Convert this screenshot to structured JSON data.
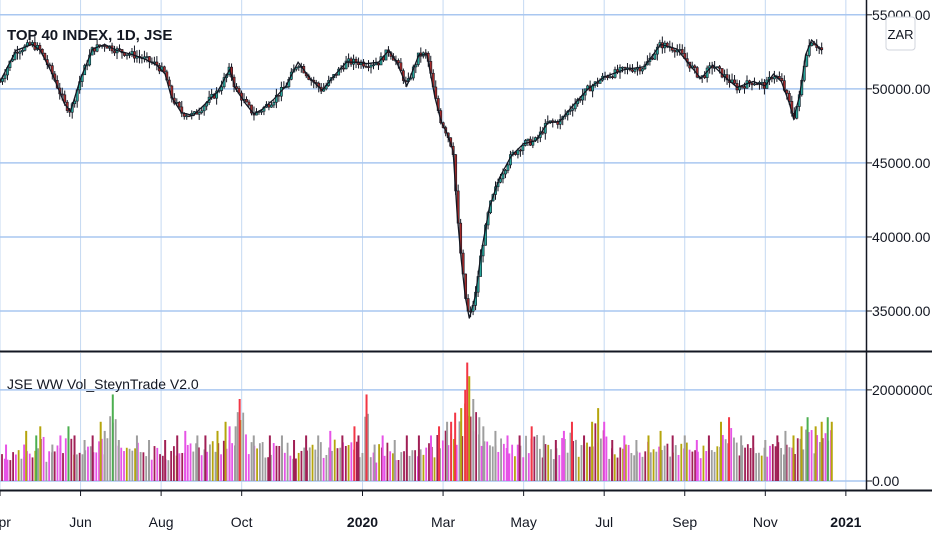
{
  "chart_data": [
    {
      "type": "candlestick",
      "title": "TOP 40 INDEX, 1D, JSE",
      "currency_label": "ZAR",
      "y_ticks": [
        "55000.00",
        "50000.00",
        "45000.00",
        "40000.00",
        "35000.00"
      ],
      "y_tick_values": [
        55000,
        50000,
        45000,
        40000,
        35000
      ],
      "ylim": [
        32300,
        56000
      ],
      "x_ticks": [
        "Apr",
        "Jun",
        "Aug",
        "Oct",
        "2020",
        "Mar",
        "May",
        "Jul",
        "Sep",
        "Nov",
        "2021"
      ],
      "x_tick_positions": [
        0,
        2,
        4,
        6,
        9,
        11,
        13,
        15,
        17,
        19,
        21
      ],
      "xlim": [
        0,
        21.5
      ],
      "grid": true,
      "series": [
        {
          "values": [
            [
              0.0,
              50500
            ],
            [
              0.4,
              52600
            ],
            [
              0.8,
              53000
            ],
            [
              1.0,
              52600
            ],
            [
              1.3,
              51000
            ],
            [
              1.6,
              49000
            ],
            [
              1.75,
              48500
            ],
            [
              2.0,
              50700
            ],
            [
              2.3,
              52700
            ],
            [
              2.6,
              53000
            ],
            [
              2.9,
              52600
            ],
            [
              3.3,
              52300
            ],
            [
              3.6,
              52000
            ],
            [
              3.9,
              51600
            ],
            [
              4.1,
              51000
            ],
            [
              4.25,
              49500
            ],
            [
              4.5,
              48400
            ],
            [
              4.8,
              48200
            ],
            [
              5.1,
              49000
            ],
            [
              5.4,
              49800
            ],
            [
              5.7,
              51300
            ],
            [
              5.85,
              50000
            ],
            [
              6.1,
              49000
            ],
            [
              6.3,
              48300
            ],
            [
              6.5,
              48600
            ],
            [
              6.8,
              49300
            ],
            [
              7.1,
              50200
            ],
            [
              7.4,
              51800
            ],
            [
              7.7,
              50700
            ],
            [
              8.0,
              49900
            ],
            [
              8.3,
              50900
            ],
            [
              8.6,
              51800
            ],
            [
              8.9,
              51800
            ],
            [
              9.1,
              51700
            ],
            [
              9.4,
              51800
            ],
            [
              9.65,
              52600
            ],
            [
              9.85,
              51800
            ],
            [
              10.1,
              50200
            ],
            [
              10.4,
              52300
            ],
            [
              10.6,
              52300
            ],
            [
              10.8,
              49400
            ],
            [
              10.95,
              47800
            ],
            [
              11.1,
              47000
            ],
            [
              11.25,
              45800
            ],
            [
              11.35,
              41500
            ],
            [
              11.45,
              38500
            ],
            [
              11.55,
              36000
            ],
            [
              11.65,
              34500
            ],
            [
              11.8,
              36000
            ],
            [
              11.95,
              39000
            ],
            [
              12.15,
              42000
            ],
            [
              12.4,
              44000
            ],
            [
              12.7,
              45500
            ],
            [
              13.0,
              46300
            ],
            [
              13.3,
              46500
            ],
            [
              13.6,
              47700
            ],
            [
              13.9,
              47800
            ],
            [
              14.2,
              48800
            ],
            [
              14.6,
              50000
            ],
            [
              15.0,
              50800
            ],
            [
              15.5,
              51300
            ],
            [
              16.0,
              51500
            ],
            [
              16.4,
              53000
            ],
            [
              16.8,
              52700
            ],
            [
              17.1,
              51700
            ],
            [
              17.4,
              50700
            ],
            [
              17.7,
              51600
            ],
            [
              18.0,
              50800
            ],
            [
              18.3,
              50100
            ],
            [
              18.7,
              50500
            ],
            [
              19.0,
              50200
            ],
            [
              19.2,
              51000
            ],
            [
              19.4,
              50500
            ],
            [
              19.6,
              49000
            ],
            [
              19.7,
              48000
            ],
            [
              19.85,
              49500
            ],
            [
              20.0,
              52300
            ],
            [
              20.15,
              53300
            ],
            [
              20.4,
              52600
            ]
          ]
        }
      ]
    },
    {
      "type": "bar",
      "title": "JSE WW Vol_SteynTrade V2.0",
      "y_ticks": [
        "20000000.00",
        "0.00"
      ],
      "y_tick_values": [
        20000000,
        0
      ],
      "ylim": [
        0,
        27000000
      ],
      "grid": true,
      "colors": {
        "red": "#f23645",
        "green": "#4caf50",
        "olive": "#b5a50c",
        "crimson": "#a01f55",
        "magenta": "#e653e6",
        "gray": "#9e9e9e"
      },
      "values": [
        [
          0.15,
          8000000,
          "magenta"
        ],
        [
          0.6,
          8000000,
          "magenta"
        ],
        [
          0.65,
          11000000,
          "olive"
        ],
        [
          0.9,
          10000000,
          "green"
        ],
        [
          1.0,
          12000000,
          "olive"
        ],
        [
          1.3,
          8000000,
          "gray"
        ],
        [
          1.5,
          10000000,
          "magenta"
        ],
        [
          1.7,
          12000000,
          "green"
        ],
        [
          1.85,
          10000000,
          "crimson"
        ],
        [
          2.1,
          9000000,
          "gray"
        ],
        [
          2.3,
          10000000,
          "crimson"
        ],
        [
          2.5,
          13000000,
          "olive"
        ],
        [
          2.6,
          11000000,
          "gray"
        ],
        [
          2.8,
          19000000,
          "green"
        ],
        [
          2.95,
          9000000,
          "gray"
        ],
        [
          3.4,
          10000000,
          "gray"
        ],
        [
          3.7,
          9000000,
          "gray"
        ],
        [
          4.1,
          9000000,
          "crimson"
        ],
        [
          4.4,
          10000000,
          "crimson"
        ],
        [
          4.6,
          11000000,
          "magenta"
        ],
        [
          4.9,
          10000000,
          "gray"
        ],
        [
          5.1,
          10000000,
          "crimson"
        ],
        [
          5.4,
          11000000,
          "olive"
        ],
        [
          5.6,
          13000000,
          "olive"
        ],
        [
          5.7,
          12000000,
          "magenta"
        ],
        [
          5.85,
          12000000,
          "gray"
        ],
        [
          5.95,
          18000000,
          "red"
        ],
        [
          6.3,
          10000000,
          "gray"
        ],
        [
          6.7,
          10000000,
          "crimson"
        ],
        [
          7.0,
          10000000,
          "gray"
        ],
        [
          7.3,
          9000000,
          "crimson"
        ],
        [
          7.6,
          10000000,
          "crimson"
        ],
        [
          7.9,
          10000000,
          "gray"
        ],
        [
          8.2,
          11000000,
          "magenta"
        ],
        [
          8.5,
          10000000,
          "crimson"
        ],
        [
          8.8,
          12000000,
          "red"
        ],
        [
          8.9,
          10000000,
          "crimson"
        ],
        [
          9.1,
          19000000,
          "red"
        ],
        [
          9.3,
          8000000,
          "gray"
        ],
        [
          9.5,
          10000000,
          "magenta"
        ],
        [
          9.8,
          9000000,
          "gray"
        ],
        [
          10.1,
          10000000,
          "crimson"
        ],
        [
          10.4,
          10000000,
          "crimson"
        ],
        [
          10.7,
          10000000,
          "magenta"
        ],
        [
          10.9,
          12000000,
          "red"
        ],
        [
          11.1,
          13000000,
          "gray"
        ],
        [
          11.2,
          13000000,
          "red"
        ],
        [
          11.3,
          15000000,
          "red"
        ],
        [
          11.45,
          16000000,
          "olive"
        ],
        [
          11.55,
          20000000,
          "red"
        ],
        [
          11.6,
          26000000,
          "red"
        ],
        [
          11.65,
          23000000,
          "olive"
        ],
        [
          11.75,
          18000000,
          "gray"
        ],
        [
          11.9,
          14000000,
          "gray"
        ],
        [
          12.0,
          12000000,
          "gray"
        ],
        [
          12.3,
          11000000,
          "gray"
        ],
        [
          12.6,
          10000000,
          "magenta"
        ],
        [
          12.9,
          10000000,
          "crimson"
        ],
        [
          13.2,
          12000000,
          "red"
        ],
        [
          13.5,
          10000000,
          "gray"
        ],
        [
          13.8,
          9000000,
          "crimson"
        ],
        [
          14.0,
          11000000,
          "magenta"
        ],
        [
          14.2,
          13000000,
          "red"
        ],
        [
          14.5,
          10000000,
          "crimson"
        ],
        [
          14.7,
          13000000,
          "olive"
        ],
        [
          14.85,
          16000000,
          "olive"
        ],
        [
          15.0,
          13000000,
          "magenta"
        ],
        [
          15.2,
          9000000,
          "crimson"
        ],
        [
          15.5,
          10000000,
          "magenta"
        ],
        [
          15.8,
          9000000,
          "gray"
        ],
        [
          16.1,
          10000000,
          "olive"
        ],
        [
          16.4,
          11000000,
          "olive"
        ],
        [
          16.7,
          10000000,
          "crimson"
        ],
        [
          17.0,
          10000000,
          "gray"
        ],
        [
          17.3,
          9000000,
          "magenta"
        ],
        [
          17.6,
          10000000,
          "crimson"
        ],
        [
          17.9,
          13000000,
          "olive"
        ],
        [
          18.1,
          14000000,
          "red"
        ],
        [
          18.4,
          10000000,
          "gray"
        ],
        [
          18.7,
          10000000,
          "crimson"
        ],
        [
          19.0,
          9000000,
          "gray"
        ],
        [
          19.3,
          10000000,
          "crimson"
        ],
        [
          19.5,
          11000000,
          "gray"
        ],
        [
          19.7,
          10000000,
          "olive"
        ],
        [
          19.9,
          12000000,
          "olive"
        ],
        [
          20.05,
          14000000,
          "green"
        ],
        [
          20.25,
          12000000,
          "olive"
        ],
        [
          20.4,
          13000000,
          "olive"
        ],
        [
          20.55,
          14000000,
          "green"
        ],
        [
          20.65,
          13000000,
          "olive"
        ]
      ]
    }
  ]
}
